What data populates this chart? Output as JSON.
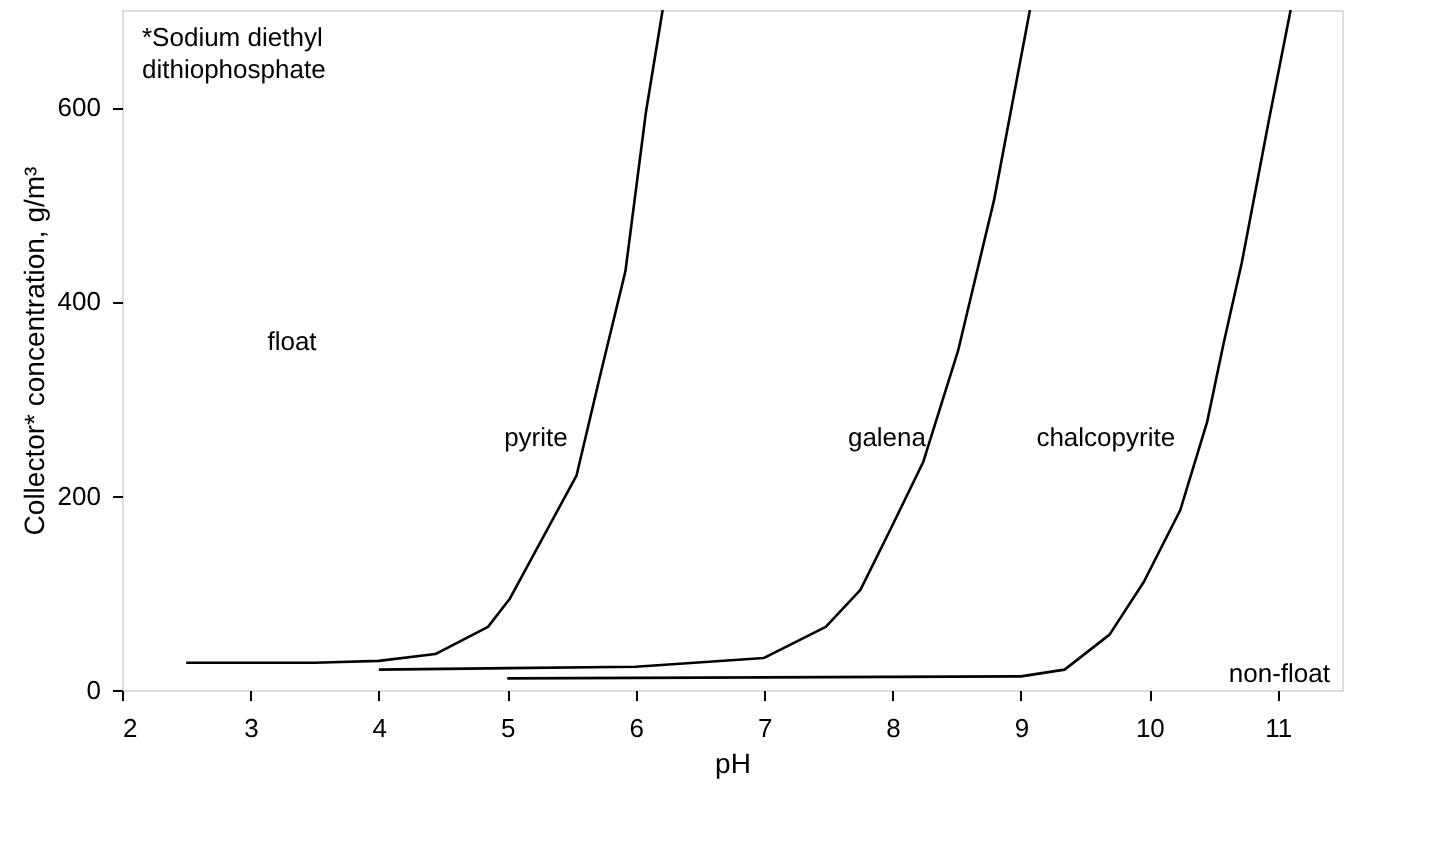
{
  "chart_data": {
    "type": "line",
    "xlabel": "pH",
    "ylabel": "Collector* concentration, g/m³",
    "xlim": [
      2,
      11.5
    ],
    "xticks": [
      2,
      3,
      4,
      5,
      6,
      7,
      8,
      9,
      10,
      11
    ],
    "ylim": [
      0,
      700
    ],
    "yticks": [
      0,
      200,
      400,
      600
    ],
    "marker": "none",
    "line_style": "solid",
    "annotations": [
      "*Sodium diethyl\ndithiophosphate",
      "float",
      "non-float"
    ],
    "series": [
      {
        "name": "pyrite",
        "color": "#000000",
        "x": [
          2.5,
          3.5,
          4.0,
          4.44,
          4.85,
          5.02,
          5.54,
          5.72,
          5.92,
          6.08,
          6.21
        ],
        "values": [
          28,
          28,
          30,
          37,
          65,
          94,
          221,
          322,
          431,
          595,
          700
        ]
      },
      {
        "name": "galena",
        "color": "#000000",
        "x": [
          4.0,
          6.0,
          7.0,
          7.48,
          7.75,
          7.99,
          8.24,
          8.51,
          8.79,
          9.07
        ],
        "values": [
          21,
          24,
          33,
          65,
          103,
          167,
          235,
          349,
          504,
          700
        ]
      },
      {
        "name": "chalcopyrite",
        "color": "#000000",
        "x": [
          5.0,
          9.0,
          9.34,
          9.69,
          9.96,
          10.24,
          10.45,
          10.58,
          10.72,
          10.93,
          11.1
        ],
        "values": [
          12,
          14,
          21,
          57,
          112,
          185,
          276,
          358,
          440,
          586,
          700
        ]
      }
    ]
  }
}
